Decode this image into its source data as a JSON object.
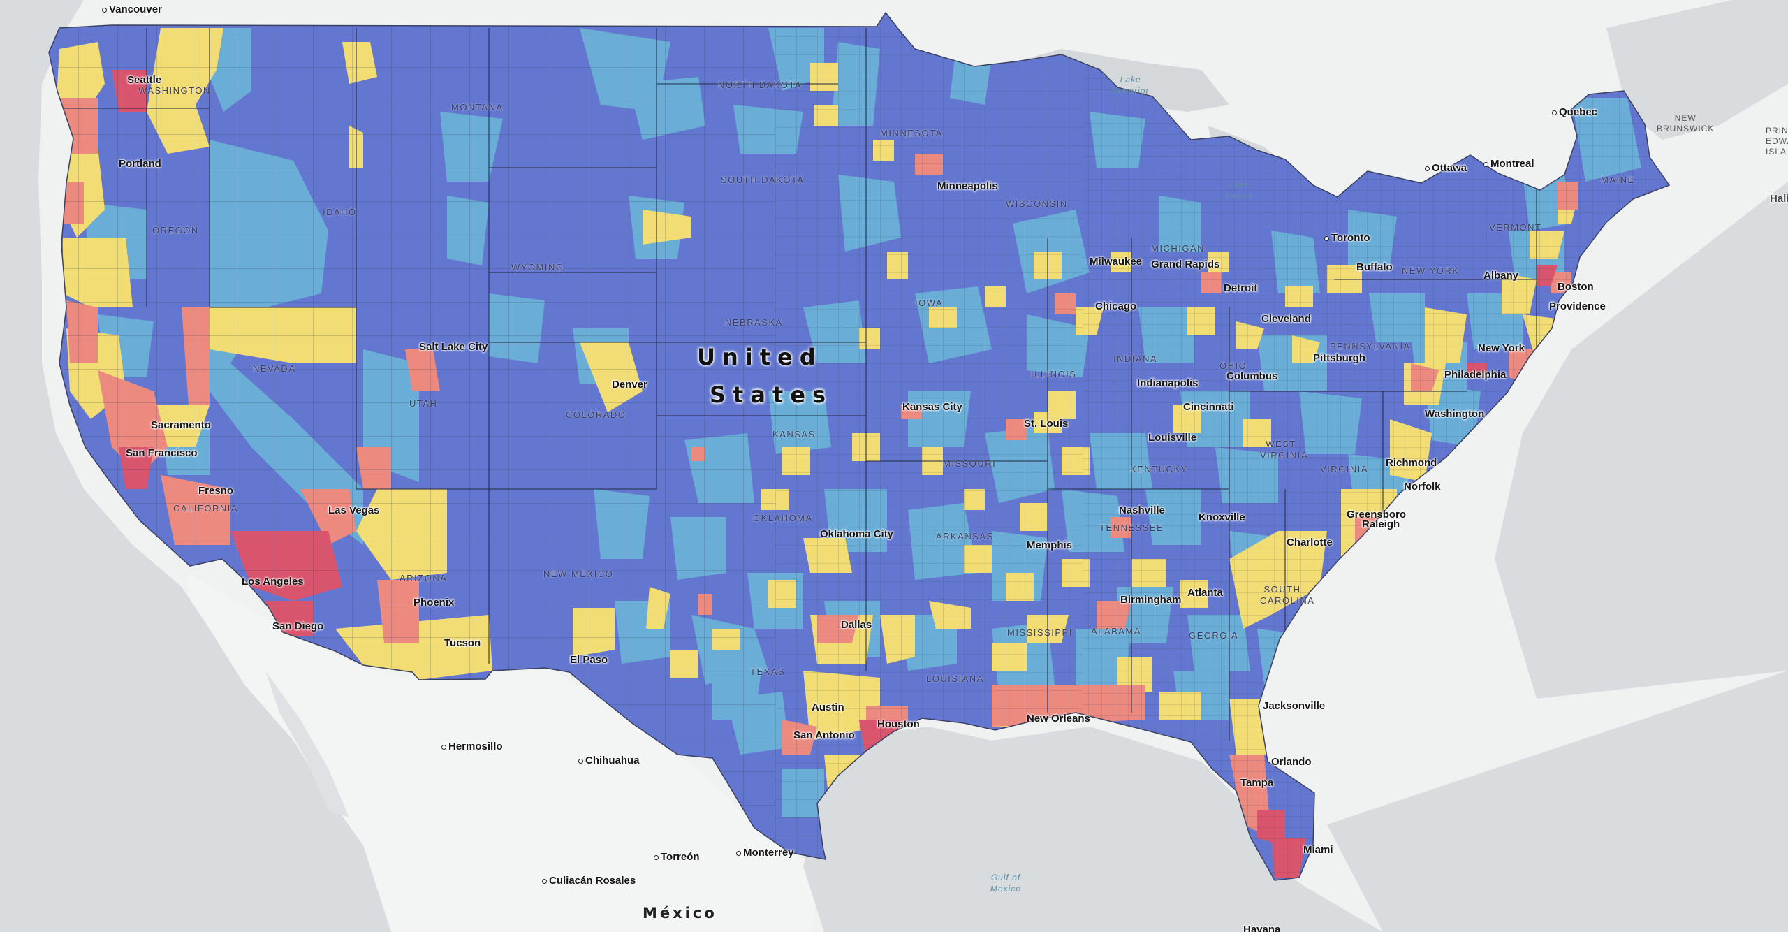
{
  "map": {
    "country_label": [
      "United",
      "States"
    ],
    "mexico_label": "México",
    "legend_colors": {
      "lowest": "#6477d0",
      "low": "#6aaed7",
      "medium": "#f2dc74",
      "high": "#ec8a80",
      "highest": "#d9556e"
    },
    "cities": [
      "Vancouver",
      "Seattle",
      "Portland",
      "Sacramento",
      "San Francisco",
      "Fresno",
      "Los Angeles",
      "San Diego",
      "Las Vegas",
      "Phoenix",
      "Tucson",
      "Salt Lake City",
      "Denver",
      "El Paso",
      "Hermosillo",
      "Chihuahua",
      "Torreón",
      "Monterrey",
      "Culiacán Rosales",
      "Dallas",
      "Austin",
      "San Antonio",
      "Houston",
      "Oklahoma City",
      "Kansas City",
      "St. Louis",
      "Memphis",
      "New Orleans",
      "Minneapolis",
      "Milwaukee",
      "Chicago",
      "Grand Rapids",
      "Detroit",
      "Indianapolis",
      "Columbus",
      "Cincinnati",
      "Louisville",
      "Nashville",
      "Knoxville",
      "Birmingham",
      "Atlanta",
      "Jacksonville",
      "Orlando",
      "Tampa",
      "Miami",
      "Havana",
      "Charlotte",
      "Greensboro",
      "Raleigh",
      "Richmond",
      "Norfolk",
      "Washington",
      "Philadelphia",
      "New York",
      "Providence",
      "Boston",
      "Albany",
      "Buffalo",
      "Cleveland",
      "Pittsburgh",
      "Toronto",
      "Ottawa",
      "Montreal",
      "Quebec",
      "Halifax"
    ],
    "states": [
      "WASHINGTON",
      "OREGON",
      "CALIFORNIA",
      "NEVADA",
      "IDAHO",
      "MONTANA",
      "WYOMING",
      "UTAH",
      "ARIZONA",
      "COLORADO",
      "NEW MEXICO",
      "NORTH DAKOTA",
      "SOUTH DAKOTA",
      "NEBRASKA",
      "KANSAS",
      "OKLAHOMA",
      "TEXAS",
      "MINNESOTA",
      "IOWA",
      "MISSOURI",
      "ARKANSAS",
      "LOUISIANA",
      "WISCONSIN",
      "MICHIGAN",
      "ILLINOIS",
      "INDIANA",
      "OHIO",
      "KENTUCKY",
      "TENNESSEE",
      "MISSISSIPPI",
      "ALABAMA",
      "GEORGIA",
      "SOUTH CAROLINA",
      "WEST VIRGINIA",
      "VIRGINIA",
      "PENNSYLVANIA",
      "NEW YORK",
      "VERMONT",
      "MAINE"
    ],
    "water": {
      "superior": [
        "Lake",
        "Superior"
      ],
      "huron": [
        "Lake",
        "Huron"
      ],
      "gulf": [
        "Gulf of",
        "Mexico"
      ]
    },
    "provinces": {
      "nb": [
        "NEW",
        "BRUNSWICK"
      ],
      "pei": [
        "PRIN",
        "EDWA",
        "ISLA"
      ]
    }
  }
}
